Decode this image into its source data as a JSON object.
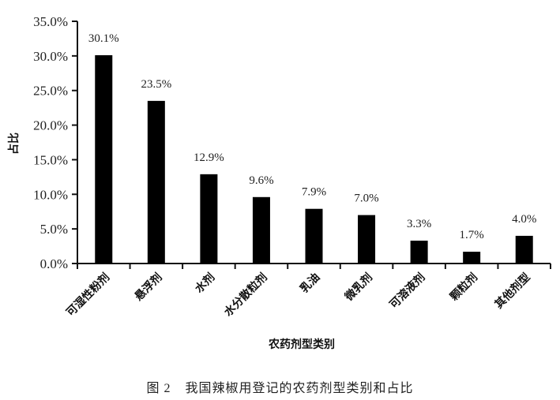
{
  "chart_data": {
    "type": "bar",
    "title": "",
    "xlabel": "农药剂型类别",
    "ylabel": "占比",
    "ylim": [
      0,
      35
    ],
    "yticks": [
      "0.0%",
      "5.0%",
      "10.0%",
      "15.0%",
      "20.0%",
      "25.0%",
      "30.0%",
      "35.0%"
    ],
    "categories": [
      "可湿性粉剂",
      "悬浮剂",
      "水剂",
      "水分散粒剂",
      "乳油",
      "微乳剂",
      "可溶液剂",
      "颗粒剂",
      "其他剂型"
    ],
    "values": [
      30.1,
      23.5,
      12.9,
      9.6,
      7.9,
      7.0,
      3.3,
      1.7,
      4.0
    ],
    "value_labels": [
      "30.1%",
      "23.5%",
      "12.9%",
      "9.6%",
      "7.9%",
      "7.0%",
      "3.3%",
      "1.7%",
      "4.0%"
    ],
    "bar_color": "#000000",
    "grid": false,
    "legend": "none"
  },
  "caption": {
    "figure_number": "图 2",
    "text": "我国辣椒用登记的农药剂型类别和占比"
  }
}
